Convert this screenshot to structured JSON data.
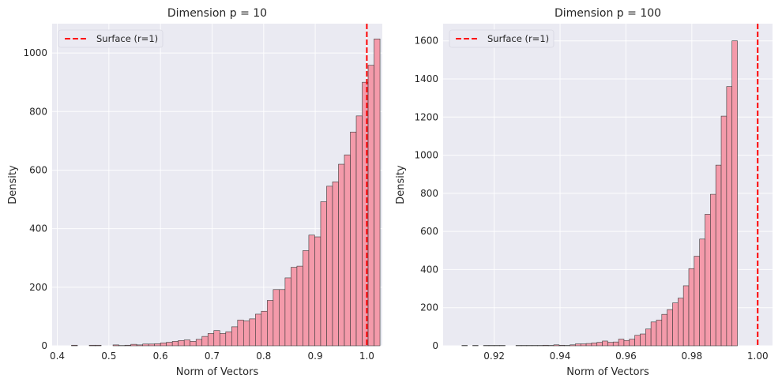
{
  "colors": {
    "figure_bg": "#ffffff",
    "axes_bg": "#eaeaf2",
    "grid": "#ffffff",
    "bar_fill": "#f49aaa",
    "bar_edge": "#3a3a3a",
    "surface_line": "#ff0000",
    "legend_bg": "#eaeaf2"
  },
  "chart_data": [
    {
      "type": "bar",
      "title": "Dimension p = 10",
      "xlabel": "Norm of Vectors",
      "ylabel": "Density",
      "xlim": [
        0.39,
        1.03
      ],
      "ylim": [
        0,
        1100
      ],
      "xticks": [
        0.4,
        0.5,
        0.6,
        0.7,
        0.8,
        0.9,
        1.0
      ],
      "xtick_labels": [
        "0.4",
        "0.5",
        "0.6",
        "0.7",
        "0.8",
        "0.9",
        "1.0"
      ],
      "yticks": [
        0,
        200,
        400,
        600,
        800,
        1000
      ],
      "ytick_labels": [
        "0",
        "200",
        "400",
        "600",
        "800",
        "1000"
      ],
      "grid": true,
      "legend": {
        "position": "top-left",
        "entries": [
          "Surface (r=1)"
        ]
      },
      "reference_line": {
        "x": 1.0,
        "label": "Surface (r=1)",
        "style": "dashed"
      },
      "bin_start": 0.4275,
      "bin_width": 0.0115,
      "values": [
        2,
        0,
        0,
        2,
        2,
        0,
        0,
        3,
        1,
        2,
        5,
        3,
        6,
        6,
        7,
        10,
        12,
        15,
        18,
        20,
        15,
        22,
        32,
        42,
        52,
        42,
        48,
        65,
        88,
        85,
        92,
        108,
        118,
        155,
        192,
        192,
        232,
        268,
        272,
        325,
        378,
        372,
        492,
        545,
        560,
        620,
        652,
        730,
        785,
        900,
        958,
        1048
      ]
    },
    {
      "type": "bar",
      "title": "Dimension p = 100",
      "xlabel": "Norm of Vectors",
      "ylabel": "Density",
      "xlim": [
        0.9045,
        1.0045
      ],
      "ylim": [
        0,
        1690
      ],
      "xticks": [
        0.92,
        0.94,
        0.96,
        0.98,
        1.0
      ],
      "xtick_labels": [
        "0.92",
        "0.94",
        "0.96",
        "0.98",
        "1.00"
      ],
      "yticks": [
        0,
        200,
        400,
        600,
        800,
        1000,
        1200,
        1400,
        1600
      ],
      "ytick_labels": [
        "0",
        "200",
        "400",
        "600",
        "800",
        "1000",
        "1200",
        "1400",
        "1600"
      ],
      "grid": true,
      "legend": {
        "position": "top-left",
        "entries": [
          "Surface (r=1)"
        ]
      },
      "reference_line": {
        "x": 1.0,
        "label": "Surface (r=1)",
        "style": "dashed"
      },
      "bin_start": 0.9102,
      "bin_width": 0.00164,
      "values": [
        2,
        0,
        2,
        0,
        2,
        2,
        2,
        2,
        0,
        0,
        2,
        2,
        2,
        2,
        2,
        3,
        2,
        5,
        3,
        2,
        5,
        10,
        10,
        12,
        15,
        18,
        25,
        18,
        20,
        35,
        28,
        35,
        55,
        62,
        88,
        125,
        135,
        165,
        190,
        225,
        250,
        315,
        405,
        470,
        560,
        690,
        795,
        948,
        1205,
        1360,
        1600
      ]
    }
  ]
}
